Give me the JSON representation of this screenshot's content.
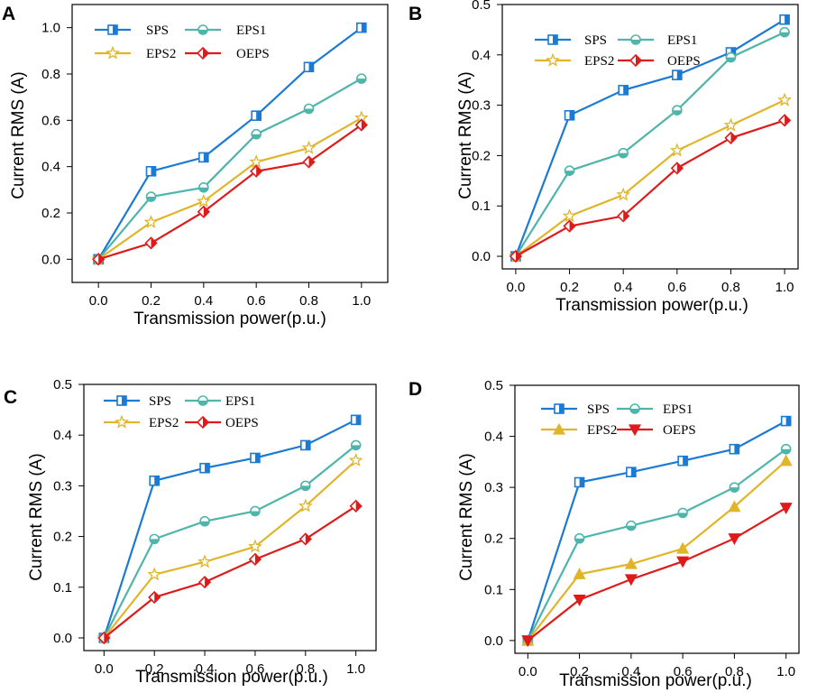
{
  "colors": {
    "SPS": "#1b7ad3",
    "EPS1": "#4fb5aa",
    "EPS2": "#e0b52a",
    "OEPS": "#e01a1a"
  },
  "chart_data": [
    {
      "panel": "A",
      "type": "line",
      "xlabel": "Transmission power(p.u.)",
      "ylabel": "Current RMS (A)",
      "xlim": [
        -0.1,
        1.1
      ],
      "ylim": [
        -0.1,
        1.1
      ],
      "x": [
        0,
        0.2,
        0.4,
        0.6,
        0.8,
        1.0
      ],
      "x_tick_labels": [
        "0.0",
        "0.2",
        "0.4",
        "0.6",
        "0.8",
        "1.0"
      ],
      "y_ticks": [
        0,
        0.2,
        0.4,
        0.6,
        0.8,
        1.0
      ],
      "y_tick_labels": [
        "0.0",
        "0.2",
        "0.4",
        "0.6",
        "0.8",
        "1.0"
      ],
      "legend_position": "top-left",
      "series": [
        {
          "name": "SPS",
          "marker": "square",
          "values": [
            0,
            0.38,
            0.44,
            0.62,
            0.83,
            1.0
          ]
        },
        {
          "name": "EPS1",
          "marker": "circle",
          "values": [
            0,
            0.27,
            0.31,
            0.54,
            0.65,
            0.78
          ]
        },
        {
          "name": "EPS2",
          "marker": "star",
          "values": [
            0,
            0.16,
            0.25,
            0.42,
            0.48,
            0.61
          ]
        },
        {
          "name": "OEPS",
          "marker": "diamond",
          "values": [
            0,
            0.07,
            0.205,
            0.38,
            0.42,
            0.58
          ]
        }
      ]
    },
    {
      "panel": "B",
      "type": "line",
      "xlabel": "Transmission power(p.u.)",
      "ylabel": "Current RMS (A)",
      "xlim": [
        -0.05,
        1.05
      ],
      "ylim": [
        -0.025,
        0.5
      ],
      "x": [
        0,
        0.2,
        0.4,
        0.6,
        0.8,
        1.0
      ],
      "x_tick_labels": [
        "0.0",
        "0.2",
        "0.4",
        "0.6",
        "0.8",
        "1.0"
      ],
      "y_ticks": [
        0,
        0.1,
        0.2,
        0.3,
        0.4,
        0.5
      ],
      "y_tick_labels": [
        "0.0",
        "0.1",
        "0.2",
        "0.3",
        "0.4",
        "0.5"
      ],
      "legend_position": "top-left",
      "series": [
        {
          "name": "SPS",
          "marker": "square",
          "values": [
            0,
            0.28,
            0.33,
            0.36,
            0.405,
            0.47
          ]
        },
        {
          "name": "EPS1",
          "marker": "circle",
          "values": [
            0,
            0.17,
            0.205,
            0.29,
            0.395,
            0.445
          ]
        },
        {
          "name": "EPS2",
          "marker": "star",
          "values": [
            0,
            0.08,
            0.122,
            0.21,
            0.26,
            0.31
          ]
        },
        {
          "name": "OEPS",
          "marker": "diamond",
          "values": [
            0,
            0.06,
            0.08,
            0.175,
            0.235,
            0.27
          ]
        }
      ]
    },
    {
      "panel": "C",
      "type": "line",
      "xlabel": "Transmission power(p.u.)",
      "ylabel": "Current RMS (A)",
      "xlim": [
        -0.08,
        1.08
      ],
      "ylim": [
        -0.025,
        0.5
      ],
      "x": [
        0,
        0.2,
        0.4,
        0.6,
        0.8,
        1.0
      ],
      "x_tick_labels": [
        "0.0",
        "0.2",
        "0.4",
        "0.6",
        "0.8",
        "1.0"
      ],
      "y_ticks": [
        0,
        0.1,
        0.2,
        0.3,
        0.4,
        0.5
      ],
      "y_tick_labels": [
        "0.0",
        "0.1",
        "0.2",
        "0.3",
        "0.4",
        "0.5"
      ],
      "legend_position": "top-left",
      "series": [
        {
          "name": "SPS",
          "marker": "square",
          "values": [
            0,
            0.31,
            0.335,
            0.355,
            0.38,
            0.43
          ]
        },
        {
          "name": "EPS1",
          "marker": "circle",
          "values": [
            0,
            0.195,
            0.23,
            0.25,
            0.3,
            0.38
          ]
        },
        {
          "name": "EPS2",
          "marker": "star",
          "values": [
            0,
            0.125,
            0.15,
            0.18,
            0.26,
            0.35
          ]
        },
        {
          "name": "OEPS",
          "marker": "diamond",
          "values": [
            0,
            0.08,
            0.11,
            0.155,
            0.195,
            0.26
          ]
        }
      ]
    },
    {
      "panel": "D",
      "type": "line",
      "xlabel": "Transmission power(p.u.)",
      "ylabel": "Current RMS (A)",
      "xlim": [
        -0.05,
        1.05
      ],
      "ylim": [
        -0.025,
        0.5
      ],
      "x": [
        0,
        0.2,
        0.4,
        0.6,
        0.8,
        1.0
      ],
      "x_tick_labels": [
        "0.0",
        "0.2",
        "0.4",
        "0.6",
        "0.8",
        "1.0"
      ],
      "y_ticks": [
        0,
        0.1,
        0.2,
        0.3,
        0.4,
        0.5
      ],
      "y_tick_labels": [
        "0.0",
        "0.1",
        "0.2",
        "0.3",
        "0.4",
        "0.5"
      ],
      "legend_position": "top-left",
      "series": [
        {
          "name": "SPS",
          "marker": "square",
          "values": [
            0,
            0.31,
            0.33,
            0.352,
            0.375,
            0.43
          ]
        },
        {
          "name": "EPS1",
          "marker": "circle",
          "values": [
            0,
            0.2,
            0.225,
            0.25,
            0.3,
            0.375
          ]
        },
        {
          "name": "EPS2",
          "marker": "triangle-up",
          "values": [
            0,
            0.13,
            0.15,
            0.18,
            0.262,
            0.352
          ]
        },
        {
          "name": "OEPS",
          "marker": "triangle-down",
          "values": [
            0,
            0.08,
            0.12,
            0.155,
            0.2,
            0.26
          ]
        }
      ]
    }
  ]
}
